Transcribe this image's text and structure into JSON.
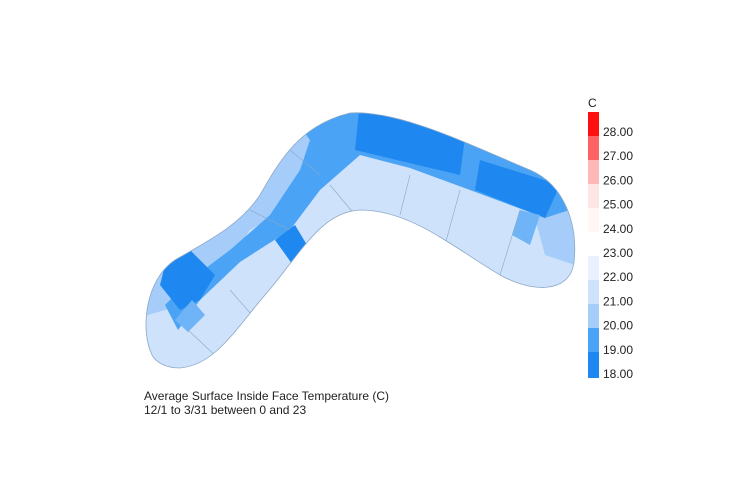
{
  "legend": {
    "unit": "C",
    "ticks": [
      {
        "value": 28,
        "label": "28.00"
      },
      {
        "value": 27,
        "label": "27.00"
      },
      {
        "value": 26,
        "label": "26.00"
      },
      {
        "value": 25,
        "label": "25.00"
      },
      {
        "value": 24,
        "label": "24.00"
      },
      {
        "value": 23,
        "label": "23.00"
      },
      {
        "value": 22,
        "label": "22.00"
      },
      {
        "value": 21,
        "label": "21.00"
      },
      {
        "value": 20,
        "label": "20.00"
      },
      {
        "value": 19,
        "label": "19.00"
      },
      {
        "value": 18,
        "label": "18.00"
      }
    ]
  },
  "caption": {
    "title": "Average Surface Inside Face Temperature (C)",
    "period": "12/1 to 3/31 between 0 and 23"
  }
}
